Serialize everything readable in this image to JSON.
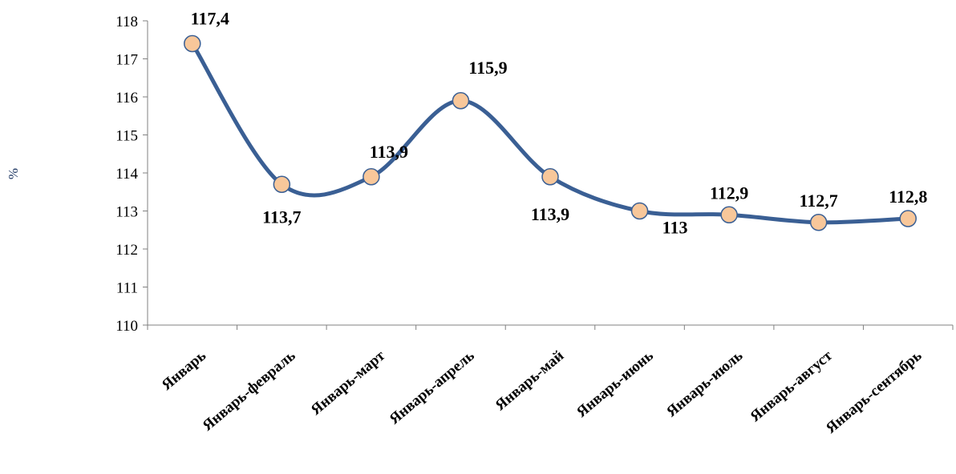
{
  "chart_data": {
    "type": "line",
    "categories": [
      "Январь",
      "Январь-февраль",
      "Январь-март",
      "Январь-апрель",
      "Январь-май",
      "Январь-июнь",
      "Январь-июль",
      "Январь-август",
      "Январь-сентябрь"
    ],
    "series": [
      {
        "values": [
          117.4,
          113.7,
          113.9,
          115.9,
          113.9,
          113,
          112.9,
          112.7,
          112.8
        ]
      }
    ],
    "data_labels": [
      "117,4",
      "113,7",
      "113,9",
      "115,9",
      "113,9",
      "113",
      "112,9",
      "112,7",
      "112,8"
    ],
    "ylabel": "%",
    "ylim": [
      110,
      118
    ],
    "y_ticks": [
      110,
      111,
      112,
      113,
      114,
      115,
      116,
      117,
      118
    ],
    "y_tick_labels": [
      "110",
      "111",
      "112",
      "113",
      "114",
      "115",
      "116",
      "117",
      "118"
    ],
    "grid": false,
    "smooth": true,
    "colors": {
      "line": "#3a5f94",
      "marker_fill": "#f8c79a",
      "marker_stroke": "#3a5f94"
    }
  }
}
